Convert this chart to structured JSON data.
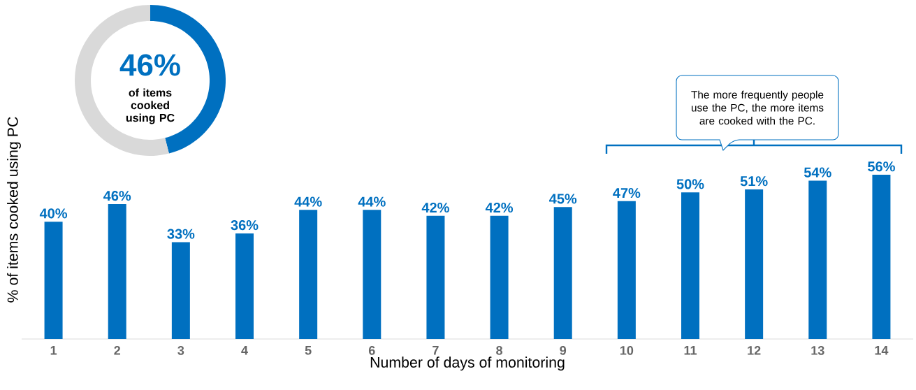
{
  "chart_data": [
    {
      "type": "donut",
      "categories": [
        null,
        null
      ],
      "values": [
        46,
        54
      ],
      "colors": [
        "#0070c0",
        "#d9d9d9"
      ],
      "value_labels": [
        "46%",
        null
      ],
      "annotations": [
        "of items cooked using PC"
      ]
    },
    {
      "type": "bar",
      "xlabel": "Number of days of monitoring",
      "ylabel": "% of items cooked using PC",
      "categories": [
        "1",
        "2",
        "3",
        "4",
        "5",
        "6",
        "7",
        "8",
        "9",
        "10",
        "11",
        "12",
        "13",
        "14"
      ],
      "values": [
        40,
        46,
        33,
        36,
        44,
        44,
        42,
        42,
        45,
        47,
        50,
        51,
        54,
        56
      ],
      "value_labels": [
        "40%",
        "46%",
        "33%",
        "36%",
        "44%",
        "44%",
        "42%",
        "42%",
        "45%",
        "47%",
        "50%",
        "51%",
        "54%",
        "56%"
      ],
      "color": "#0070c0",
      "annotations": [
        "The more frequently people use the PC, the more items are cooked with the PC."
      ]
    }
  ]
}
